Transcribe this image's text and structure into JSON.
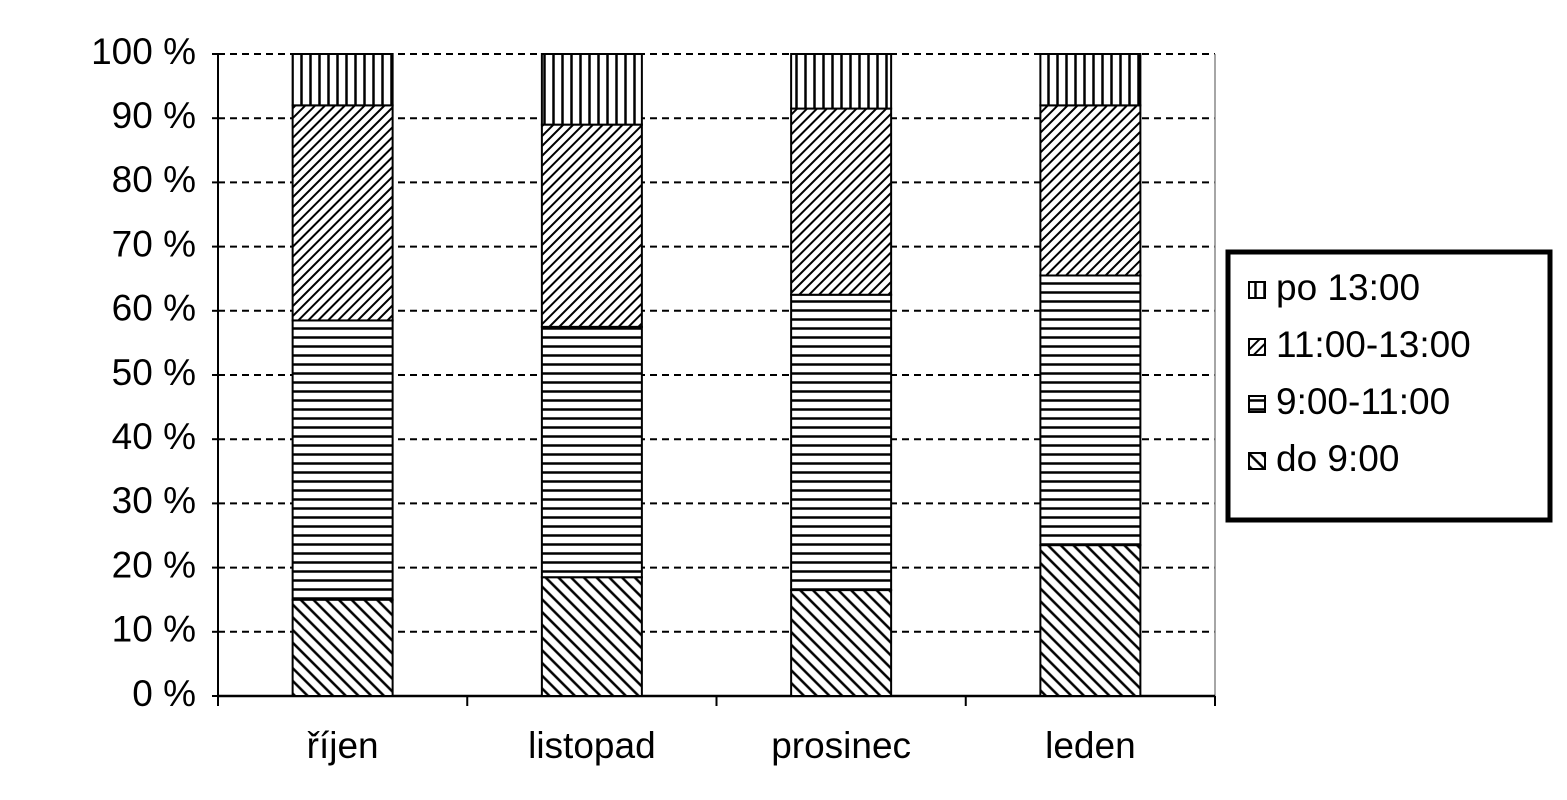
{
  "chart_data": {
    "type": "stacked_bar",
    "categories": [
      "říjen",
      "listopad",
      "prosinec",
      "leden"
    ],
    "series": [
      {
        "name": "do 9:00",
        "pattern": "diagonal-down",
        "values": [
          15,
          18.5,
          16.5,
          23.5
        ]
      },
      {
        "name": "9:00-11:00",
        "pattern": "horizontal",
        "values": [
          43.5,
          39,
          46,
          42
        ]
      },
      {
        "name": "11:00-13:00",
        "pattern": "diagonal-up",
        "values": [
          33.5,
          31.5,
          29,
          26.5
        ]
      },
      {
        "name": "po 13:00",
        "pattern": "vertical",
        "values": [
          8,
          11,
          8.5,
          8
        ]
      }
    ],
    "ylim": [
      0,
      100
    ],
    "yticks": [
      {
        "value": 0,
        "label": "0 %"
      },
      {
        "value": 10,
        "label": "10 %"
      },
      {
        "value": 20,
        "label": "20 %"
      },
      {
        "value": 30,
        "label": "30 %"
      },
      {
        "value": 40,
        "label": "40 %"
      },
      {
        "value": 50,
        "label": "50 %"
      },
      {
        "value": 60,
        "label": "60 %"
      },
      {
        "value": 70,
        "label": "70 %"
      },
      {
        "value": 80,
        "label": "80 %"
      },
      {
        "value": 90,
        "label": "90 %"
      },
      {
        "value": 100,
        "label": "100 %"
      }
    ],
    "grid": true,
    "legend": "right"
  }
}
